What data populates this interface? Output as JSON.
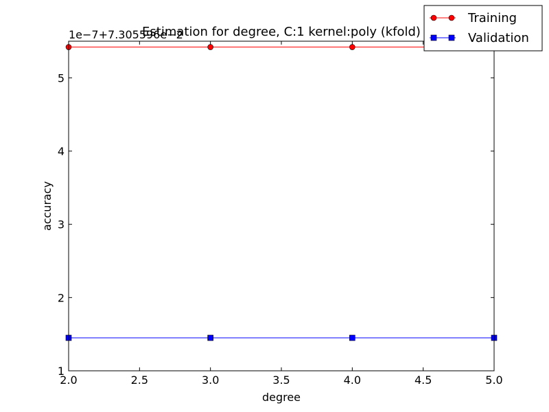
{
  "chart_data": {
    "type": "line",
    "title": "Estimation for degree, C:1 kernel:poly (kfold)",
    "xlabel": "degree",
    "ylabel": "accuracy",
    "offset_label": "1e−7+7.305596e−2",
    "xlim": [
      2.0,
      5.0
    ],
    "ylim": [
      1.0,
      5.5
    ],
    "xticks": [
      2.0,
      2.5,
      3.0,
      3.5,
      4.0,
      4.5,
      5.0
    ],
    "xtick_labels": [
      "2.0",
      "2.5",
      "3.0",
      "3.5",
      "4.0",
      "4.5",
      "5.0"
    ],
    "yticks": [
      1,
      2,
      3,
      4,
      5
    ],
    "ytick_labels": [
      "1",
      "2",
      "3",
      "4",
      "5"
    ],
    "x": [
      2,
      3,
      4,
      5
    ],
    "series": [
      {
        "name": "Training",
        "values": [
          5.42,
          5.42,
          5.42,
          5.42
        ],
        "color": "#ff0000",
        "marker": "circle"
      },
      {
        "name": "Validation",
        "values": [
          1.45,
          1.45,
          1.45,
          1.45
        ],
        "color": "#0000ff",
        "marker": "square"
      }
    ],
    "legend": {
      "position": "top-right",
      "entries": [
        "Training",
        "Validation"
      ]
    }
  }
}
